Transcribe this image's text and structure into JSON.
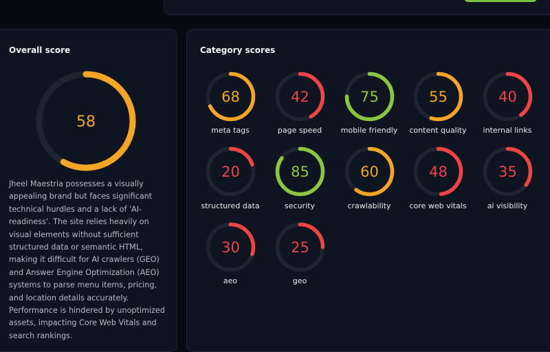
{
  "range": [
    0,
    100
  ],
  "overall": {
    "title": "Overall score",
    "score": 58,
    "color": "#f5a524",
    "description": "Jheel Maestria possesses a visually appealing brand but faces significant technical hurdles and a lack of 'AI-readiness'. The site relies heavily on visual elements without sufficient structured data or semantic HTML, making it difficult for AI crawlers (GEO) and Answer Engine Optimization (AEO) systems to parse menu items, pricing, and location details accurately. Performance is hindered by unoptimized assets, impacting Core Web Vitals and search rankings."
  },
  "categories": {
    "title": "Category scores",
    "items": [
      {
        "label": "meta tags",
        "score": 68,
        "color": "#f5a524"
      },
      {
        "label": "page speed",
        "score": 42,
        "color": "#f04444"
      },
      {
        "label": "mobile friendly",
        "score": 75,
        "color": "#8cc63f"
      },
      {
        "label": "content quality",
        "score": 55,
        "color": "#f5a524"
      },
      {
        "label": "internal links",
        "score": 40,
        "color": "#f04444"
      },
      {
        "label": "structured data",
        "score": 20,
        "color": "#f04444"
      },
      {
        "label": "security",
        "score": 85,
        "color": "#8cc63f"
      },
      {
        "label": "crawlability",
        "score": 60,
        "color": "#f5a524"
      },
      {
        "label": "core web vitals",
        "score": 48,
        "color": "#f04444"
      },
      {
        "label": "ai visibility",
        "score": 35,
        "color": "#f04444"
      },
      {
        "label": "aeo",
        "score": 30,
        "color": "#f04444"
      },
      {
        "label": "geo",
        "score": 25,
        "color": "#f04444"
      }
    ]
  }
}
